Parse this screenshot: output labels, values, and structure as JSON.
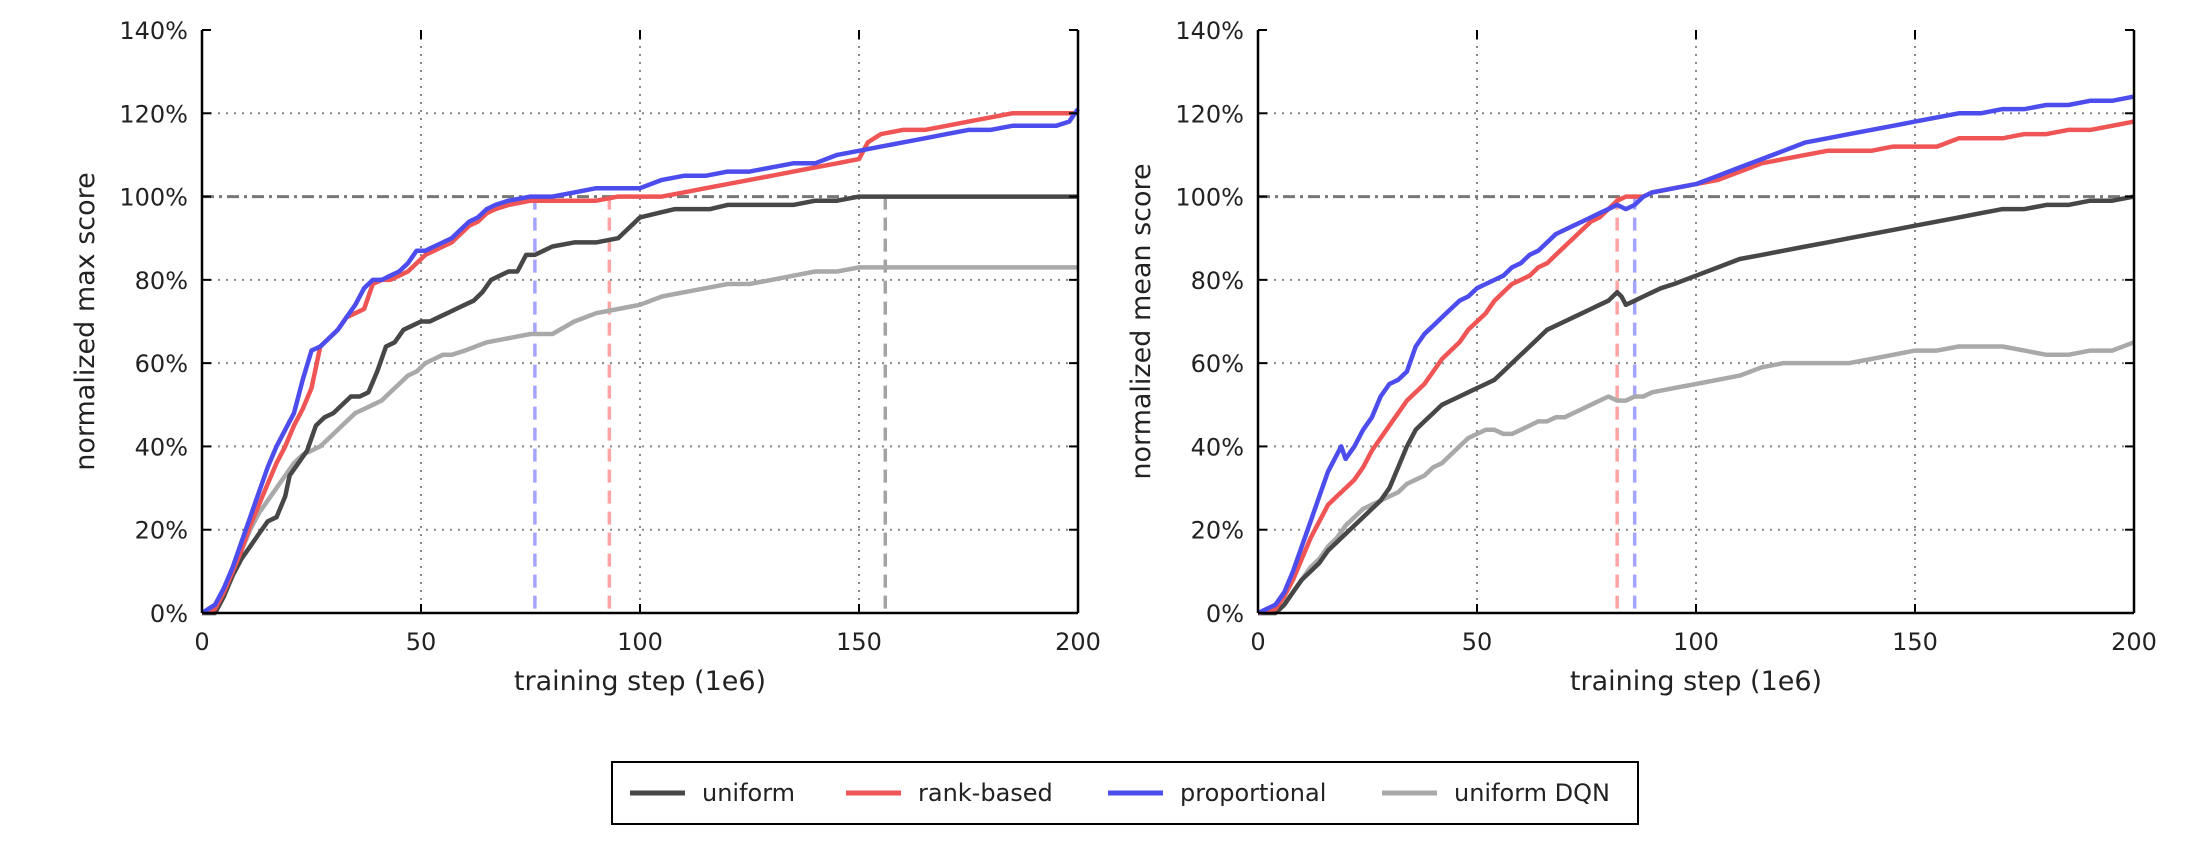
{
  "chart_data": [
    {
      "type": "line",
      "xlabel": "training step (1e6)",
      "ylabel": "normalized max score",
      "xlim": [
        0,
        200
      ],
      "ylim": [
        0,
        140
      ],
      "xticks": [
        "0",
        "50",
        "100",
        "150",
        "200"
      ],
      "yticks": [
        "0%",
        "20%",
        "40%",
        "60%",
        "80%",
        "100%",
        "120%",
        "140%"
      ],
      "grid": true,
      "reference_line": 100,
      "vlines": [
        {
          "x": 76,
          "color": "#5a5aff"
        },
        {
          "x": 93,
          "color": "#ff5a5a"
        },
        {
          "x": 156,
          "color": "#555555"
        }
      ],
      "series": [
        {
          "name": "uniform",
          "color": "#474747",
          "x": [
            0,
            3,
            5,
            7,
            9,
            11,
            13,
            15,
            17,
            19,
            20,
            22,
            24,
            26,
            28,
            30,
            32,
            34,
            36,
            38,
            40,
            42,
            44,
            46,
            48,
            50,
            52,
            54,
            56,
            58,
            60,
            62,
            64,
            66,
            68,
            70,
            72,
            74,
            76,
            78,
            80,
            85,
            90,
            95,
            97,
            100,
            104,
            108,
            112,
            116,
            120,
            125,
            130,
            135,
            140,
            145,
            150,
            155,
            160,
            170,
            180,
            190,
            200
          ],
          "y": [
            0,
            0,
            4,
            9,
            13,
            16,
            19,
            22,
            23,
            28,
            33,
            36,
            39,
            45,
            47,
            48,
            50,
            52,
            52,
            53,
            58,
            64,
            65,
            68,
            69,
            70,
            70,
            71,
            72,
            73,
            74,
            75,
            77,
            80,
            81,
            82,
            82,
            86,
            86,
            87,
            88,
            89,
            89,
            90,
            92,
            95,
            96,
            97,
            97,
            97,
            98,
            98,
            98,
            98,
            99,
            99,
            100,
            100,
            100,
            100,
            100,
            100,
            100
          ]
        },
        {
          "name": "rank-based",
          "color": "#f05555",
          "x": [
            0,
            3,
            5,
            7,
            9,
            11,
            13,
            15,
            17,
            19,
            21,
            23,
            25,
            27,
            29,
            31,
            33,
            35,
            37,
            39,
            41,
            43,
            45,
            47,
            49,
            51,
            53,
            55,
            57,
            59,
            61,
            63,
            65,
            67,
            70,
            75,
            80,
            85,
            90,
            95,
            100,
            105,
            110,
            115,
            120,
            125,
            130,
            135,
            140,
            145,
            150,
            152,
            155,
            160,
            165,
            170,
            175,
            180,
            185,
            190,
            195,
            200
          ],
          "y": [
            0,
            1,
            5,
            10,
            15,
            21,
            26,
            31,
            36,
            40,
            45,
            49,
            54,
            64,
            66,
            68,
            71,
            72,
            73,
            79,
            80,
            80,
            81,
            82,
            84,
            86,
            87,
            88,
            89,
            91,
            93,
            94,
            96,
            97,
            98,
            99,
            99,
            99,
            99,
            100,
            100,
            100,
            101,
            102,
            103,
            104,
            105,
            106,
            107,
            108,
            109,
            113,
            115,
            116,
            116,
            117,
            118,
            119,
            120,
            120,
            120,
            120
          ]
        },
        {
          "name": "proportional",
          "color": "#4d4dee",
          "x": [
            0,
            3,
            5,
            7,
            9,
            11,
            13,
            15,
            17,
            19,
            21,
            23,
            25,
            27,
            29,
            31,
            33,
            35,
            37,
            39,
            41,
            43,
            45,
            47,
            49,
            51,
            53,
            55,
            57,
            59,
            61,
            63,
            65,
            67,
            70,
            75,
            80,
            85,
            90,
            95,
            100,
            105,
            110,
            115,
            120,
            125,
            130,
            135,
            140,
            145,
            150,
            155,
            160,
            165,
            170,
            175,
            180,
            185,
            190,
            195,
            198,
            200
          ],
          "y": [
            0,
            2,
            6,
            11,
            17,
            23,
            29,
            35,
            40,
            44,
            48,
            56,
            63,
            64,
            66,
            68,
            71,
            74,
            78,
            80,
            80,
            81,
            82,
            84,
            87,
            87,
            88,
            89,
            90,
            92,
            94,
            95,
            97,
            98,
            99,
            100,
            100,
            101,
            102,
            102,
            102,
            104,
            105,
            105,
            106,
            106,
            107,
            108,
            108,
            110,
            111,
            112,
            113,
            114,
            115,
            116,
            116,
            117,
            117,
            117,
            118,
            121
          ]
        },
        {
          "name": "uniform DQN",
          "color": "#a9a9a9",
          "x": [
            0,
            3,
            5,
            7,
            9,
            11,
            13,
            15,
            17,
            19,
            21,
            23,
            25,
            27,
            29,
            31,
            33,
            35,
            37,
            39,
            41,
            43,
            45,
            47,
            49,
            51,
            53,
            55,
            57,
            60,
            65,
            70,
            75,
            80,
            85,
            90,
            95,
            100,
            105,
            110,
            115,
            120,
            125,
            130,
            135,
            140,
            145,
            150,
            155,
            160,
            170,
            180,
            190,
            200
          ],
          "y": [
            0,
            0,
            4,
            10,
            15,
            20,
            24,
            27,
            30,
            33,
            36,
            38,
            39,
            40,
            42,
            44,
            46,
            48,
            49,
            50,
            51,
            53,
            55,
            57,
            58,
            60,
            61,
            62,
            62,
            63,
            65,
            66,
            67,
            67,
            70,
            72,
            73,
            74,
            76,
            77,
            78,
            79,
            79,
            80,
            81,
            82,
            82,
            83,
            83,
            83,
            83,
            83,
            83,
            83
          ]
        }
      ]
    },
    {
      "type": "line",
      "xlabel": "training step (1e6)",
      "ylabel": "normalized mean score",
      "xlim": [
        0,
        200
      ],
      "ylim": [
        0,
        140
      ],
      "xticks": [
        "0",
        "50",
        "100",
        "150",
        "200"
      ],
      "yticks": [
        "0%",
        "20%",
        "40%",
        "60%",
        "80%",
        "100%",
        "120%",
        "140%"
      ],
      "grid": true,
      "reference_line": 100,
      "vlines": [
        {
          "x": 82,
          "color": "#ff5a5a"
        },
        {
          "x": 86,
          "color": "#5a5aff"
        }
      ],
      "series": [
        {
          "name": "uniform",
          "color": "#474747",
          "x": [
            0,
            4,
            6,
            8,
            10,
            12,
            14,
            16,
            18,
            20,
            22,
            24,
            26,
            28,
            30,
            32,
            34,
            36,
            38,
            40,
            42,
            44,
            46,
            48,
            50,
            52,
            54,
            56,
            58,
            60,
            62,
            64,
            66,
            68,
            70,
            72,
            74,
            76,
            78,
            80,
            82,
            83,
            84,
            86,
            88,
            90,
            92,
            95,
            100,
            105,
            110,
            115,
            120,
            125,
            130,
            135,
            140,
            145,
            150,
            155,
            160,
            165,
            170,
            175,
            180,
            185,
            190,
            195,
            200
          ],
          "y": [
            0,
            0,
            2,
            5,
            8,
            10,
            12,
            15,
            17,
            19,
            21,
            23,
            25,
            27,
            30,
            35,
            40,
            44,
            46,
            48,
            50,
            51,
            52,
            53,
            54,
            55,
            56,
            58,
            60,
            62,
            64,
            66,
            68,
            69,
            70,
            71,
            72,
            73,
            74,
            75,
            77,
            76,
            74,
            75,
            76,
            77,
            78,
            79,
            81,
            83,
            85,
            86,
            87,
            88,
            89,
            90,
            91,
            92,
            93,
            94,
            95,
            96,
            97,
            97,
            98,
            98,
            99,
            99,
            100
          ]
        },
        {
          "name": "rank-based",
          "color": "#f05555",
          "x": [
            0,
            4,
            6,
            8,
            10,
            12,
            14,
            16,
            18,
            20,
            22,
            24,
            26,
            28,
            30,
            32,
            34,
            36,
            38,
            40,
            42,
            44,
            46,
            48,
            50,
            52,
            54,
            56,
            58,
            60,
            62,
            64,
            66,
            68,
            70,
            72,
            74,
            76,
            78,
            80,
            82,
            84,
            86,
            88,
            90,
            95,
            100,
            105,
            110,
            115,
            120,
            125,
            130,
            135,
            140,
            145,
            150,
            155,
            160,
            165,
            170,
            175,
            180,
            185,
            190,
            195,
            200
          ],
          "y": [
            0,
            1,
            4,
            8,
            13,
            18,
            22,
            26,
            28,
            30,
            32,
            35,
            39,
            42,
            45,
            48,
            51,
            53,
            55,
            58,
            61,
            63,
            65,
            68,
            70,
            72,
            75,
            77,
            79,
            80,
            81,
            83,
            84,
            86,
            88,
            90,
            92,
            94,
            95,
            97,
            99,
            100,
            100,
            100,
            101,
            102,
            103,
            104,
            106,
            108,
            109,
            110,
            111,
            111,
            111,
            112,
            112,
            112,
            114,
            114,
            114,
            115,
            115,
            116,
            116,
            117,
            118
          ]
        },
        {
          "name": "proportional",
          "color": "#4d4dee",
          "x": [
            0,
            4,
            6,
            8,
            10,
            12,
            14,
            16,
            18,
            19,
            20,
            22,
            24,
            26,
            28,
            30,
            32,
            34,
            36,
            38,
            40,
            42,
            44,
            46,
            48,
            50,
            52,
            54,
            56,
            58,
            60,
            62,
            64,
            66,
            68,
            70,
            72,
            74,
            76,
            78,
            80,
            82,
            84,
            86,
            88,
            90,
            95,
            100,
            105,
            110,
            115,
            120,
            125,
            130,
            135,
            140,
            145,
            150,
            155,
            160,
            165,
            170,
            175,
            180,
            185,
            190,
            195,
            200
          ],
          "y": [
            0,
            2,
            5,
            10,
            16,
            22,
            28,
            34,
            38,
            40,
            37,
            40,
            44,
            47,
            52,
            55,
            56,
            58,
            64,
            67,
            69,
            71,
            73,
            75,
            76,
            78,
            79,
            80,
            81,
            83,
            84,
            86,
            87,
            89,
            91,
            92,
            93,
            94,
            95,
            96,
            97,
            98,
            97,
            98,
            100,
            101,
            102,
            103,
            105,
            107,
            109,
            111,
            113,
            114,
            115,
            116,
            117,
            118,
            119,
            120,
            120,
            121,
            121,
            122,
            122,
            123,
            123,
            124
          ]
        },
        {
          "name": "uniform DQN",
          "color": "#a9a9a9",
          "x": [
            0,
            4,
            6,
            8,
            10,
            12,
            14,
            16,
            18,
            20,
            22,
            24,
            26,
            28,
            30,
            32,
            34,
            36,
            38,
            40,
            42,
            44,
            46,
            48,
            50,
            52,
            54,
            56,
            58,
            60,
            62,
            64,
            66,
            68,
            70,
            72,
            74,
            76,
            78,
            80,
            82,
            84,
            86,
            88,
            90,
            95,
            100,
            105,
            110,
            115,
            120,
            125,
            130,
            135,
            140,
            145,
            150,
            155,
            160,
            165,
            170,
            175,
            180,
            185,
            190,
            195,
            200
          ],
          "y": [
            0,
            0,
            2,
            5,
            8,
            11,
            13,
            16,
            18,
            21,
            23,
            25,
            26,
            27,
            28,
            29,
            31,
            32,
            33,
            35,
            36,
            38,
            40,
            42,
            43,
            44,
            44,
            43,
            43,
            44,
            45,
            46,
            46,
            47,
            47,
            48,
            49,
            50,
            51,
            52,
            51,
            51,
            52,
            52,
            53,
            54,
            55,
            56,
            57,
            59,
            60,
            60,
            60,
            60,
            61,
            62,
            63,
            63,
            64,
            64,
            64,
            63,
            62,
            62,
            63,
            63,
            65
          ]
        }
      ]
    }
  ],
  "legend": {
    "placement": "bottom-center",
    "items": [
      {
        "label": "uniform",
        "color": "#474747"
      },
      {
        "label": "rank-based",
        "color": "#f05555"
      },
      {
        "label": "proportional",
        "color": "#4d4dee"
      },
      {
        "label": "uniform DQN",
        "color": "#a9a9a9"
      }
    ]
  }
}
